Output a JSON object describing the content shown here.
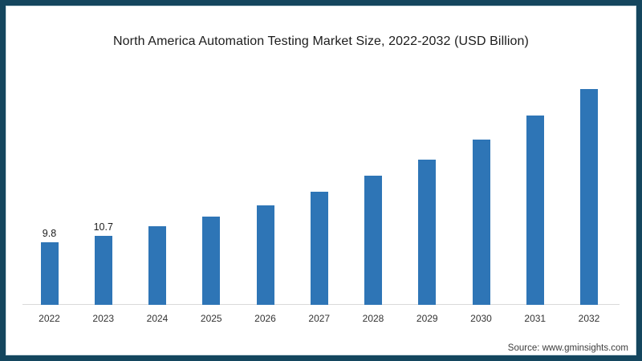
{
  "frame": {
    "border_color": "#14465e",
    "background_color": "#ffffff"
  },
  "title": "North America Automation Testing Market Size, 2022-2032 (USD Billion)",
  "source": "Source: www.gminsights.com",
  "chart_data": {
    "type": "bar",
    "title": "North America Automation Testing Market Size, 2022-2032 (USD Billion)",
    "unit": "USD Billion",
    "categories": [
      "2022",
      "2023",
      "2024",
      "2025",
      "2026",
      "2027",
      "2028",
      "2029",
      "2030",
      "2031",
      "2032"
    ],
    "values": [
      9.8,
      10.7,
      12.2,
      13.8,
      15.5,
      17.6,
      20.1,
      22.6,
      25.8,
      29.5,
      33.6
    ],
    "data_labels": [
      "9.8",
      "10.7",
      "",
      "",
      "",
      "",
      "",
      "",
      "",
      "",
      ""
    ],
    "xlabel": "",
    "ylabel": "",
    "ylim": [
      0,
      35
    ],
    "grid": false,
    "legend": false,
    "y_axis_visible": false,
    "bar_color": "#2e75b6",
    "axis_line_color": "#d9d9d9"
  }
}
